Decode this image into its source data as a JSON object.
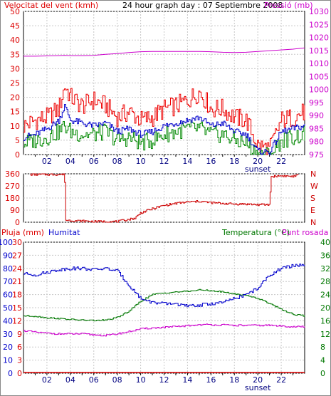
{
  "colors": {
    "wind_avg": "#0000cc",
    "wind_gust": "#ee0000",
    "wind_speed": "#008800",
    "pressure": "#cc00cc",
    "direction": "#cc0000",
    "rain": "#dd0000",
    "humidity": "#0000cc",
    "temperature": "#007700",
    "dewpoint": "#cc00cc",
    "grid": "#c8c8c8",
    "axis": "#000000"
  },
  "chart_data": [
    {
      "type": "line",
      "title": "24 hour graph day : 07 Septiembre 2008",
      "ylabel_left": "Velocitat del vent (kmh)",
      "ylabel_right": "Pressió (mb)",
      "x_ticks": [
        "02",
        "04",
        "06",
        "08",
        "10",
        "12",
        "14",
        "16",
        "18",
        "20",
        "22"
      ],
      "x_annotation": "sunset",
      "y_ticks_left": [
        "50",
        "45",
        "40",
        "35",
        "30",
        "25",
        "20",
        "15",
        "10",
        "5",
        "0"
      ],
      "y_ticks_right": [
        "1030",
        "1025",
        "1020",
        "1015",
        "1010",
        "1005",
        "1000",
        "995",
        "990",
        "985",
        "980",
        "975"
      ],
      "ylim_left": [
        0,
        50
      ],
      "ylim_right": [
        975,
        1030
      ],
      "x": [
        0,
        1,
        2,
        3,
        3.5,
        4,
        5,
        6,
        7,
        8,
        9,
        10,
        11,
        12,
        13,
        14,
        15,
        16,
        17,
        18,
        19,
        20,
        21,
        22,
        23,
        24
      ],
      "series": [
        {
          "key": "gust",
          "values": [
            10,
            12,
            13,
            16,
            24,
            20,
            17,
            19,
            17,
            13,
            15,
            12,
            13,
            16,
            17,
            19,
            22,
            16,
            16,
            13,
            12,
            3,
            2,
            12,
            13,
            15
          ]
        },
        {
          "key": "avg",
          "values": [
            6,
            7,
            9,
            12,
            17,
            12,
            11,
            10,
            11,
            8,
            9,
            7,
            8,
            10,
            11,
            12,
            13,
            10,
            11,
            8,
            7,
            1,
            1,
            8,
            9,
            10
          ]
        },
        {
          "key": "speed",
          "values": [
            4,
            5,
            6,
            8,
            10,
            8,
            7,
            7,
            8,
            5,
            6,
            4,
            5,
            7,
            8,
            9,
            9,
            7,
            7,
            5,
            4,
            0,
            0,
            5,
            6,
            7
          ]
        },
        {
          "key": "pressure",
          "values": [
            1012.8,
            1012.8,
            1012.9,
            1013.0,
            1013.1,
            1013.0,
            1013.0,
            1013.1,
            1013.5,
            1013.8,
            1014.2,
            1014.5,
            1014.6,
            1014.6,
            1014.6,
            1014.6,
            1014.6,
            1014.5,
            1014.3,
            1014.2,
            1014.3,
            1014.6,
            1014.9,
            1015.2,
            1015.5,
            1016.0
          ]
        }
      ]
    },
    {
      "type": "line",
      "y_ticks_left": [
        "360",
        "270",
        "180",
        "90",
        "0"
      ],
      "y_ticks_right": [
        "N",
        "W",
        "S",
        "E",
        "N"
      ],
      "ylim": [
        0,
        360
      ],
      "x": [
        0.5,
        0.6,
        2.0,
        2.05,
        3.5,
        3.55,
        6.0,
        8.0,
        9.5,
        10.0,
        11.0,
        12.0,
        13.0,
        14.0,
        15.0,
        16.0,
        17.0,
        18.0,
        19.0,
        20.0,
        21.0,
        21.1,
        22.0,
        23.0,
        23.5
      ],
      "values": [
        355,
        355,
        355,
        355,
        355,
        15,
        5,
        5,
        30,
        70,
        100,
        125,
        140,
        150,
        155,
        145,
        140,
        135,
        135,
        130,
        130,
        340,
        345,
        340,
        350
      ]
    },
    {
      "type": "line",
      "ylabel_left_1": "Pluja (mm)",
      "ylabel_left_2": "Humitat",
      "ylabel_right_1": "Temperatura (°C)",
      "ylabel_right_2": "Punt rosada",
      "y_ticks_left_1": [
        "100",
        "90",
        "80",
        "70",
        "60",
        "50",
        "40",
        "30",
        "20",
        "10",
        "0"
      ],
      "y_ticks_left_2": [
        "30",
        "27",
        "24",
        "21",
        "18",
        "15",
        "12",
        "9",
        "6",
        "3",
        "0"
      ],
      "y_ticks_right": [
        "40",
        "36",
        "32",
        "28",
        "24",
        "20",
        "16",
        "12",
        "8",
        "4",
        "0"
      ],
      "ylim_humidity": [
        0,
        100
      ],
      "ylim_temperature": [
        0,
        40
      ],
      "x_ticks": [
        "02",
        "04",
        "06",
        "08",
        "10",
        "12",
        "14",
        "16",
        "18",
        "20",
        "22"
      ],
      "x_annotation": "sunset",
      "x": [
        0,
        1,
        2,
        3,
        4,
        5,
        6,
        7,
        8,
        9,
        10,
        11,
        12,
        13,
        14,
        15,
        16,
        17,
        18,
        19,
        20,
        21,
        22,
        23,
        24
      ],
      "series": [
        {
          "key": "humidity",
          "values": [
            76,
            75,
            77,
            79,
            80,
            80,
            79,
            80,
            78,
            67,
            57,
            54,
            53,
            53,
            51,
            52,
            53,
            54,
            57,
            60,
            65,
            75,
            80,
            82,
            83
          ]
        },
        {
          "key": "temperature",
          "values": [
            17.5,
            17.4,
            16.9,
            16.7,
            16.4,
            16.2,
            16.1,
            16.2,
            17.0,
            19.0,
            22.0,
            24.0,
            24.5,
            24.8,
            25.0,
            25.4,
            25.2,
            24.8,
            24.2,
            23.8,
            22.8,
            21.3,
            19.5,
            18.0,
            17.5
          ]
        },
        {
          "key": "dewpoint",
          "values": [
            13.0,
            12.5,
            12.2,
            12.0,
            12.0,
            12.0,
            11.7,
            11.5,
            12.0,
            12.7,
            13.5,
            13.8,
            14.0,
            14.2,
            14.5,
            14.8,
            14.8,
            14.7,
            14.6,
            14.6,
            14.6,
            14.6,
            14.4,
            14.2,
            14.2
          ]
        },
        {
          "key": "rain",
          "values": [
            0,
            0,
            0,
            0,
            0,
            0,
            0,
            0,
            0,
            0,
            0,
            0,
            0,
            0,
            0,
            0,
            0,
            0,
            0,
            0,
            0,
            0,
            0,
            0,
            0
          ]
        }
      ]
    }
  ]
}
